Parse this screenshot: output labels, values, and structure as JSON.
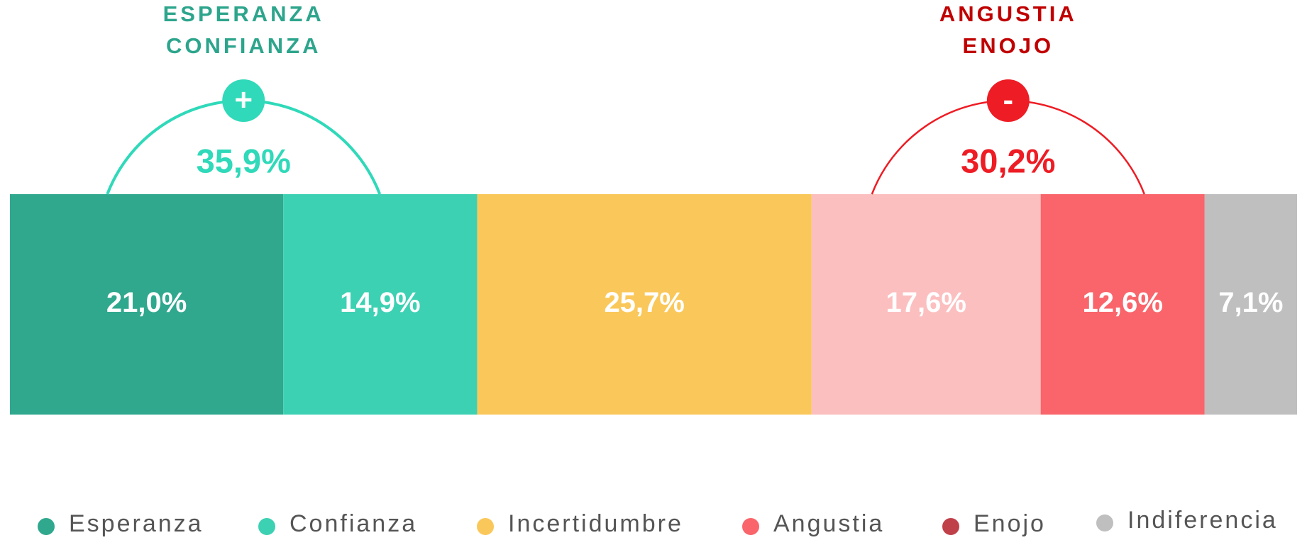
{
  "chart_data": {
    "type": "stacked_bar",
    "series": [
      {
        "name": "Esperanza",
        "color": "#30a88e",
        "legend_color": "#30a88e",
        "values": [
          21.0
        ],
        "value_labels": [
          "21,0%"
        ]
      },
      {
        "name": "Confianza",
        "color": "#3dd1b3",
        "legend_color": "#3dd1b3",
        "values": [
          14.9
        ],
        "value_labels": [
          "14,9%"
        ]
      },
      {
        "name": "Incertidumbre",
        "color": "#fac85a",
        "legend_color": "#fac85a",
        "values": [
          25.7
        ],
        "value_labels": [
          "25,7%"
        ]
      },
      {
        "name": "Angustia",
        "color": "#fcbfc0",
        "legend_color": "#f9656b",
        "values": [
          17.6
        ],
        "value_labels": [
          "17,6%"
        ]
      },
      {
        "name": "Enojo",
        "color": "#f9656b",
        "legend_color": "#c0404a",
        "values": [
          12.6
        ],
        "value_labels": [
          "12,6%"
        ]
      },
      {
        "name": "Indiferencia",
        "color": "#bfbfbf",
        "legend_color": "#bfbfbf",
        "values": [
          7.1
        ],
        "value_labels": [
          "7,1%"
        ]
      }
    ],
    "xlim": [
      0,
      98.9
    ],
    "groups": [
      {
        "title": [
          "ESPERANZA",
          "CONFIANZA"
        ],
        "symbol": "+",
        "value": 35.9,
        "value_label": "35,9%",
        "color": "#2fd9b9",
        "title_color": "#2da58c",
        "series_from": 0,
        "series_to": 1
      },
      {
        "title": [
          "ANGUSTIA",
          "ENOJO"
        ],
        "symbol": "-",
        "value": 30.2,
        "value_label": "30,2%",
        "color": "#ee1c24",
        "title_color": "#c00000",
        "series_from": 3,
        "series_to": 4
      }
    ]
  }
}
